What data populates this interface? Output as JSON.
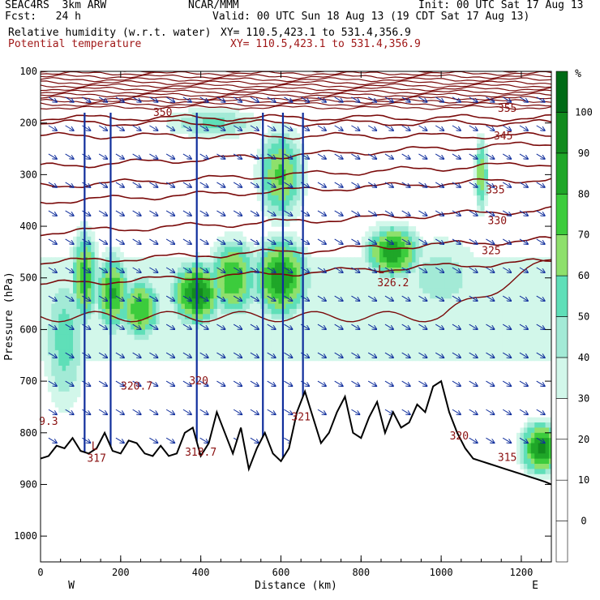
{
  "header": {
    "project": "SEAC4RS  3km ARW",
    "center": "NCAR/MMM",
    "init": "Init: 00 UTC Sat 17 Aug 13",
    "fcst": "Fcst:   24 h",
    "valid": "Valid: 00 UTC Sun 18 Aug 13 (19 CDT Sat 17 Aug 13)",
    "field1": "Relative humidity (w.r.t. water)",
    "xy1": "XY= 110.5,423.1 to 531.4,356.9",
    "field2": "Potential temperature",
    "xy2": "XY= 110.5,423.1 to 531.4,356.9"
  },
  "chart_data": {
    "type": "heatmap",
    "xlabel": "Distance (km)",
    "ylabel": "Pressure (hPa)",
    "xlim": [
      0,
      1275
    ],
    "ylim": [
      100,
      1050
    ],
    "x_ticks": [
      0,
      200,
      400,
      600,
      800,
      1000,
      1200
    ],
    "y_ticks": [
      100,
      200,
      300,
      400,
      500,
      600,
      700,
      800,
      900,
      1000
    ],
    "end_labels": {
      "left": "W",
      "right": "E"
    },
    "colorbar": {
      "unit": "%",
      "levels": [
        0,
        10,
        20,
        30,
        40,
        50,
        60,
        70,
        80,
        90,
        100
      ],
      "colors": [
        "#ffffff",
        "#ffffff",
        "#ffffff",
        "#ffffff",
        "#d2f7ea",
        "#a3ead6",
        "#5fdfb8",
        "#8ee06c",
        "#3ccc3c",
        "#1fa628",
        "#128a1e",
        "#006a16"
      ]
    },
    "theta_labels": [
      {
        "text": "350",
        "x": 305,
        "p": 180
      },
      {
        "text": "355",
        "x": 1165,
        "p": 172
      },
      {
        "text": "345",
        "x": 1155,
        "p": 226
      },
      {
        "text": "335",
        "x": 1135,
        "p": 330
      },
      {
        "text": "330",
        "x": 1140,
        "p": 390
      },
      {
        "text": "325",
        "x": 1125,
        "p": 448
      },
      {
        "text": "326.2",
        "x": 880,
        "p": 510
      },
      {
        "text": "320.7",
        "x": 240,
        "p": 710
      },
      {
        "text": "320",
        "x": 395,
        "p": 700
      },
      {
        "text": "320",
        "x": 1045,
        "p": 807
      },
      {
        "text": "321",
        "x": 650,
        "p": 770
      },
      {
        "text": "318.7",
        "x": 400,
        "p": 838
      },
      {
        "text": "317",
        "x": 140,
        "p": 850
      },
      {
        "text": "315",
        "x": 1165,
        "p": 848
      },
      {
        "text": "9.3",
        "x": 20,
        "p": 778
      }
    ],
    "extrema_labels": [
      {
        "text": "L",
        "x": 850,
        "p": 485
      },
      {
        "text": "L",
        "x": 135,
        "p": 826
      }
    ],
    "terrain_km": [
      0,
      20,
      40,
      60,
      80,
      100,
      120,
      140,
      160,
      180,
      200,
      220,
      240,
      260,
      280,
      300,
      320,
      340,
      360,
      380,
      400,
      420,
      440,
      460,
      480,
      500,
      520,
      540,
      560,
      580,
      600,
      620,
      640,
      660,
      680,
      700,
      720,
      740,
      760,
      780,
      800,
      820,
      840,
      860,
      880,
      900,
      920,
      940,
      960,
      980,
      1000,
      1020,
      1040,
      1060,
      1080,
      1100,
      1120,
      1140,
      1160,
      1180,
      1200,
      1220,
      1240,
      1260,
      1275
    ],
    "terrain_hpa": [
      850,
      845,
      825,
      830,
      810,
      835,
      840,
      830,
      800,
      835,
      840,
      815,
      820,
      840,
      845,
      825,
      845,
      840,
      800,
      790,
      845,
      820,
      760,
      800,
      840,
      790,
      870,
      830,
      800,
      840,
      855,
      830,
      760,
      720,
      770,
      820,
      800,
      760,
      730,
      800,
      810,
      770,
      740,
      800,
      760,
      790,
      780,
      745,
      760,
      710,
      700,
      760,
      800,
      830,
      850,
      855,
      860,
      865,
      870,
      875,
      880,
      885,
      890,
      895,
      900
    ],
    "rh_peaks": [
      {
        "x": 110,
        "p": 500,
        "sx": 40,
        "sp": 110,
        "v": 78
      },
      {
        "x": 180,
        "p": 530,
        "sx": 50,
        "sp": 90,
        "v": 82
      },
      {
        "x": 250,
        "p": 560,
        "sx": 60,
        "sp": 70,
        "v": 80
      },
      {
        "x": 390,
        "p": 530,
        "sx": 70,
        "sp": 70,
        "v": 95
      },
      {
        "x": 480,
        "p": 500,
        "sx": 70,
        "sp": 90,
        "v": 80
      },
      {
        "x": 600,
        "p": 500,
        "sx": 80,
        "sp": 90,
        "v": 90
      },
      {
        "x": 600,
        "p": 300,
        "sx": 70,
        "sp": 110,
        "v": 72
      },
      {
        "x": 430,
        "p": 200,
        "sx": 160,
        "sp": 40,
        "v": 52
      },
      {
        "x": 880,
        "p": 450,
        "sx": 80,
        "sp": 60,
        "v": 88
      },
      {
        "x": 1100,
        "p": 300,
        "sx": 20,
        "sp": 90,
        "v": 70
      },
      {
        "x": 1000,
        "p": 500,
        "sx": 160,
        "sp": 120,
        "v": 45
      },
      {
        "x": 60,
        "p": 620,
        "sx": 70,
        "sp": 180,
        "v": 55
      },
      {
        "x": 1250,
        "p": 830,
        "sx": 60,
        "sp": 60,
        "v": 92
      }
    ]
  }
}
